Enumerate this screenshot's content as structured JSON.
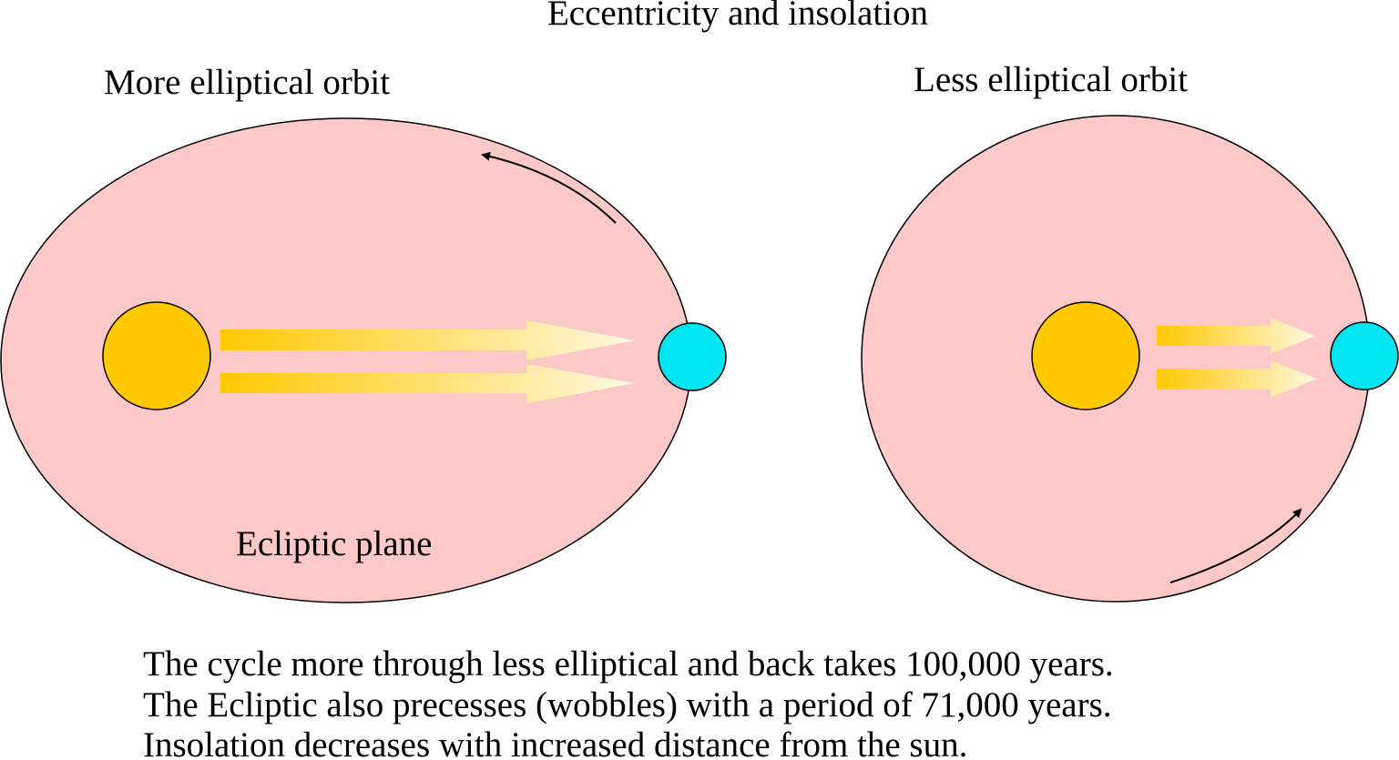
{
  "title": "Eccentricity and insolation",
  "left": {
    "label": "More elliptical orbit",
    "plane_label": "Ecliptic plane"
  },
  "right": {
    "label": "Less elliptical orbit"
  },
  "notes": [
    "The cycle more through less elliptical and back takes 100,000 years.",
    "The Ecliptic also precesses (wobbles) with a period of 71,000 years.",
    "Insolation decreases with increased distance from the sun."
  ]
}
